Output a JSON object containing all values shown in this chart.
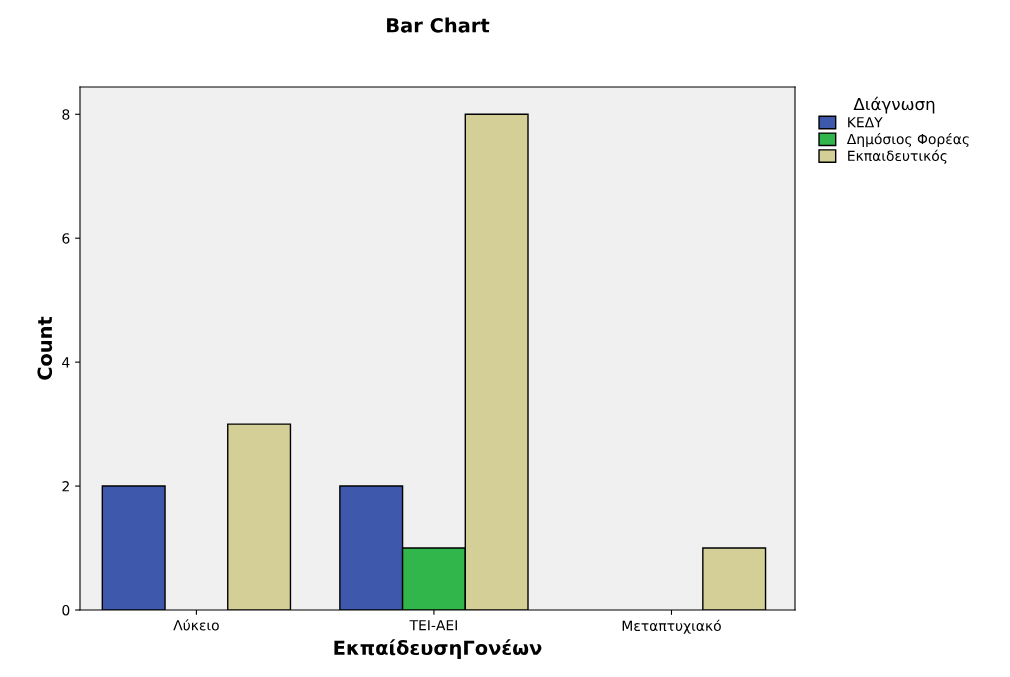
{
  "chart_data": {
    "type": "bar",
    "title": "Bar Chart",
    "xlabel": "ΕκπαίδευσηΓονέων",
    "ylabel": "Count",
    "legend_title": "Διάγνωση",
    "categories": [
      "Λύκειο",
      "ΤΕΙ-ΑΕΙ",
      "Μεταπτυχιακό"
    ],
    "series": [
      {
        "name": "ΚΕΔΥ",
        "color": "#3e58ac",
        "values": [
          2,
          2,
          null
        ]
      },
      {
        "name": "Δημόσιος Φορέας",
        "color": "#30b64b",
        "values": [
          null,
          1,
          null
        ]
      },
      {
        "name": "Εκπαιδευτικός",
        "color": "#d4cf96",
        "values": [
          3,
          8,
          1
        ]
      }
    ],
    "ylim": [
      0,
      8.44
    ],
    "yticks": [
      0,
      2,
      4,
      6,
      8
    ],
    "grid": false,
    "legend": "top right"
  }
}
